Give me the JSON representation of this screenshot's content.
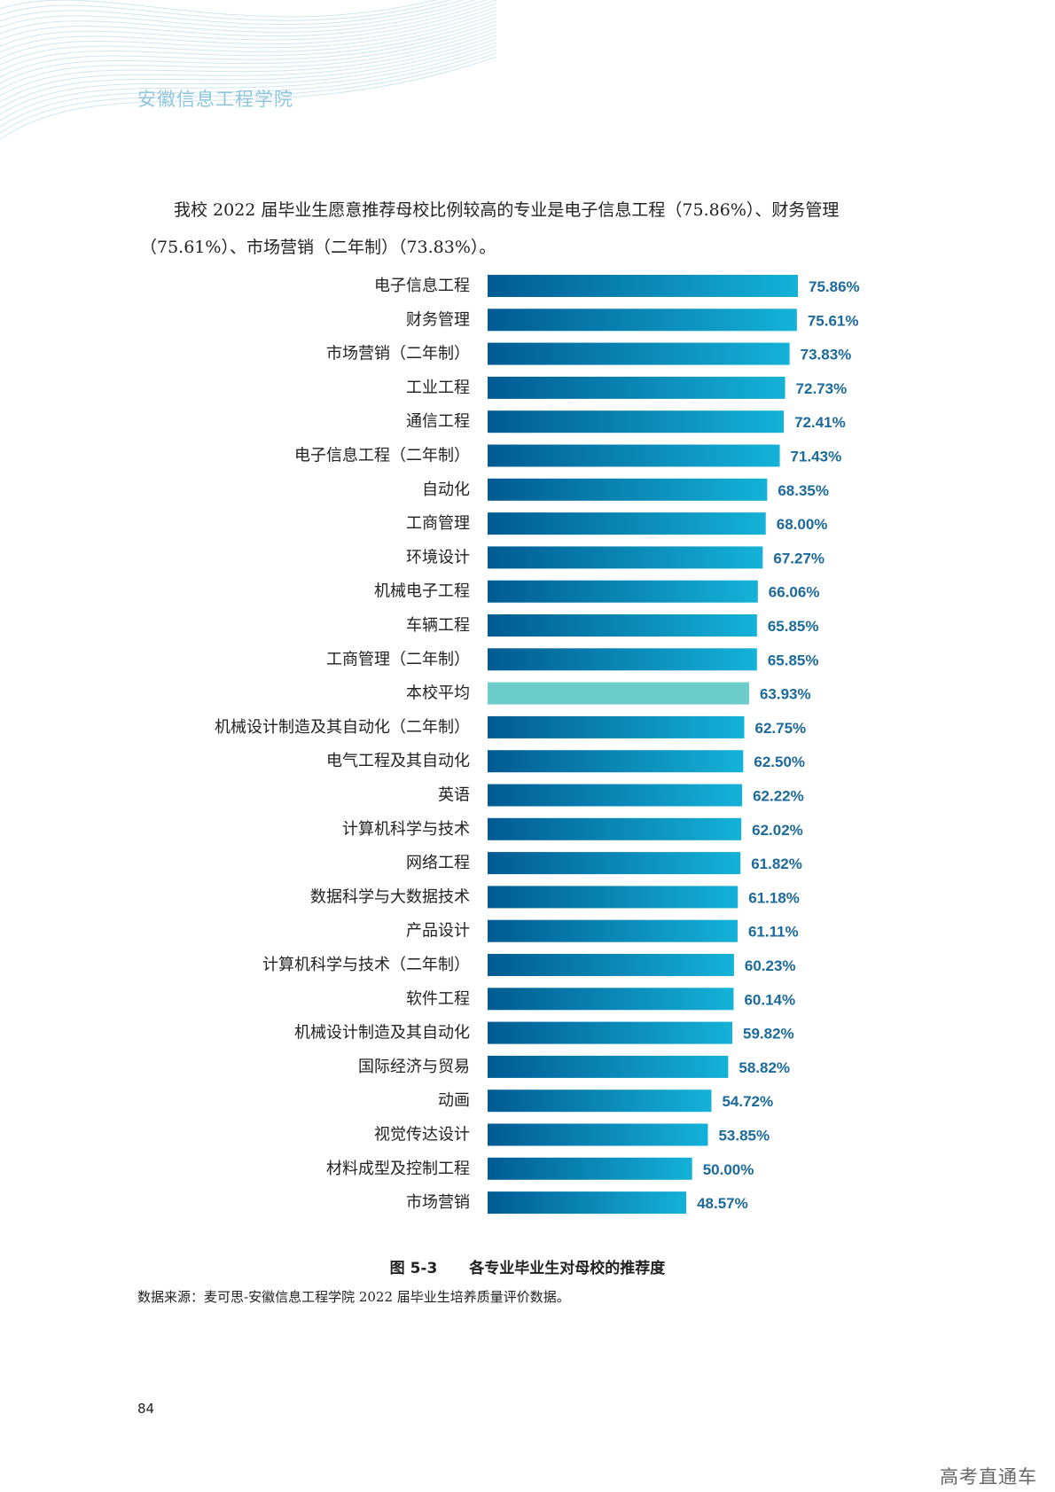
{
  "header": {
    "school": "安徽信息工程学院"
  },
  "intro": {
    "text": "我校 2022 届毕业生愿意推荐母校比例较高的专业是电子信息工程（75.86%）、财务管理（75.61%）、市场营销（二年制）（73.83%）。"
  },
  "figure": {
    "number": "图 5-3",
    "caption": "各专业毕业生对母校的推荐度",
    "source": "数据来源：麦可思-安徽信息工程学院 2022 届毕业生培养质量评价数据。"
  },
  "page": {
    "number": "84"
  },
  "watermark": {
    "text": "高考直通车"
  },
  "colors": {
    "bar_dark": "#005b92",
    "bar_light": "#14b2d8",
    "average_bar": "#6dcdcb",
    "value_label": "#1c6a9a",
    "header_accent": "#8fc6dd"
  },
  "chart_data": {
    "type": "bar",
    "orientation": "horizontal",
    "title": "",
    "xlabel": "",
    "ylabel": "",
    "unit": "%",
    "grid": false,
    "highlight": "本校平均",
    "categories": [
      "电子信息工程",
      "财务管理",
      "市场营销（二年制）",
      "工业工程",
      "通信工程",
      "电子信息工程（二年制）",
      "自动化",
      "工商管理",
      "环境设计",
      "机械电子工程",
      "车辆工程",
      "工商管理（二年制）",
      "本校平均",
      "机械设计制造及其自动化（二年制）",
      "电气工程及其自动化",
      "英语",
      "计算机科学与技术",
      "网络工程",
      "数据科学与大数据技术",
      "产品设计",
      "计算机科学与技术（二年制）",
      "软件工程",
      "机械设计制造及其自动化",
      "国际经济与贸易",
      "动画",
      "视觉传达设计",
      "材料成型及控制工程",
      "市场营销"
    ],
    "values": [
      75.86,
      75.61,
      73.83,
      72.73,
      72.41,
      71.43,
      68.35,
      68.0,
      67.27,
      66.06,
      65.85,
      65.85,
      63.93,
      62.75,
      62.5,
      62.22,
      62.02,
      61.82,
      61.18,
      61.11,
      60.23,
      60.14,
      59.82,
      58.82,
      54.72,
      53.85,
      50.0,
      48.57
    ],
    "value_labels": [
      "75.86%",
      "75.61%",
      "73.83%",
      "72.73%",
      "72.41%",
      "71.43%",
      "68.35%",
      "68.00%",
      "67.27%",
      "66.06%",
      "65.85%",
      "65.85%",
      "63.93%",
      "62.75%",
      "62.50%",
      "62.22%",
      "62.02%",
      "61.82%",
      "61.18%",
      "61.11%",
      "60.23%",
      "60.14%",
      "59.82%",
      "58.82%",
      "54.72%",
      "53.85%",
      "50.00%",
      "48.57%"
    ]
  }
}
